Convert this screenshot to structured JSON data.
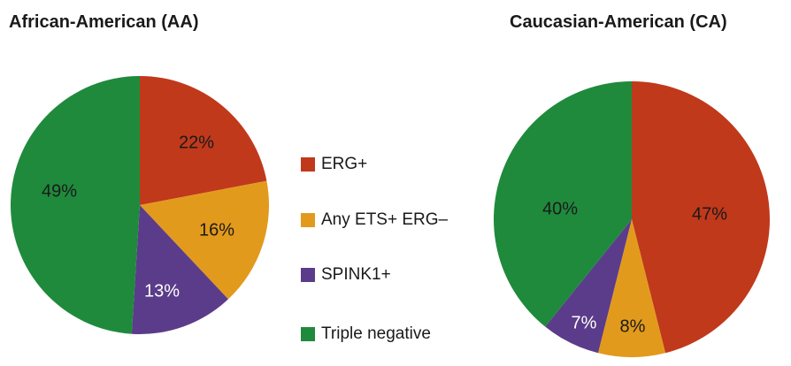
{
  "chart_data": [
    {
      "type": "pie",
      "title": "African-American (AA)",
      "slices": [
        {
          "label": "ERG+",
          "value": 22,
          "text": "22%",
          "color": "#c0391b"
        },
        {
          "label": "Any ETS+ ERG–",
          "value": 16,
          "text": "16%",
          "color": "#e29a1c"
        },
        {
          "label": "SPINK1+",
          "value": 13,
          "text": "13%",
          "color": "#5b3c8a"
        },
        {
          "label": "Triple negative",
          "value": 49,
          "text": "49%",
          "color": "#1f8a3c"
        }
      ]
    },
    {
      "type": "pie",
      "title": "Caucasian-American (CA)",
      "slices": [
        {
          "label": "ERG+",
          "value": 47,
          "text": "47%",
          "color": "#c0391b"
        },
        {
          "label": "Any ETS+ ERG–",
          "value": 8,
          "text": "8%",
          "color": "#e29a1c"
        },
        {
          "label": "SPINK1+",
          "value": 7,
          "text": "7%",
          "color": "#5b3c8a"
        },
        {
          "label": "Triple negative",
          "value": 40,
          "text": "40%",
          "color": "#1f8a3c"
        }
      ]
    }
  ],
  "legend": [
    {
      "label": "ERG+",
      "color": "#c0391b"
    },
    {
      "label": "Any ETS+ ERG–",
      "color": "#e29a1c"
    },
    {
      "label": "SPINK1+",
      "color": "#5b3c8a"
    },
    {
      "label": "Triple negative",
      "color": "#1f8a3c"
    }
  ]
}
